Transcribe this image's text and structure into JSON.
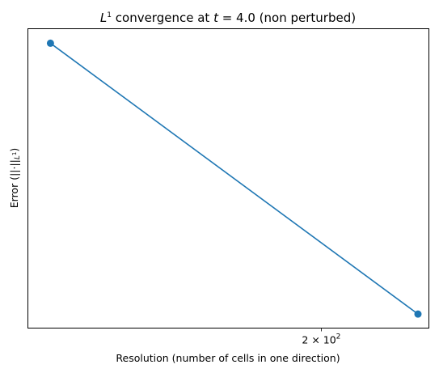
{
  "chart_data": {
    "type": "line",
    "title_parts": {
      "prefix": "L",
      "prefix_sup": "1",
      "middle": " convergence at ",
      "var": "t",
      "suffix": " = 4.0 (non perturbed)"
    },
    "xlabel": "Resolution (number of cells in one direction)",
    "ylabel": "Error (||·||",
    "ylabel_sub": "L",
    "ylabel_sub_sup": "1",
    "ylabel_close": ")",
    "x_scale": "log",
    "y_scale": "log",
    "xlim": [
      115,
      245
    ],
    "ylim": [
      0.0092,
      0.0545
    ],
    "x_ticks": [
      {
        "value": 200,
        "mantissa": "2 × 10",
        "exponent": "2"
      }
    ],
    "grid": false,
    "line_color": "#1f77b4",
    "series": [
      {
        "x": [
          120,
          240
        ],
        "y": [
          0.05,
          0.01
        ]
      }
    ]
  }
}
